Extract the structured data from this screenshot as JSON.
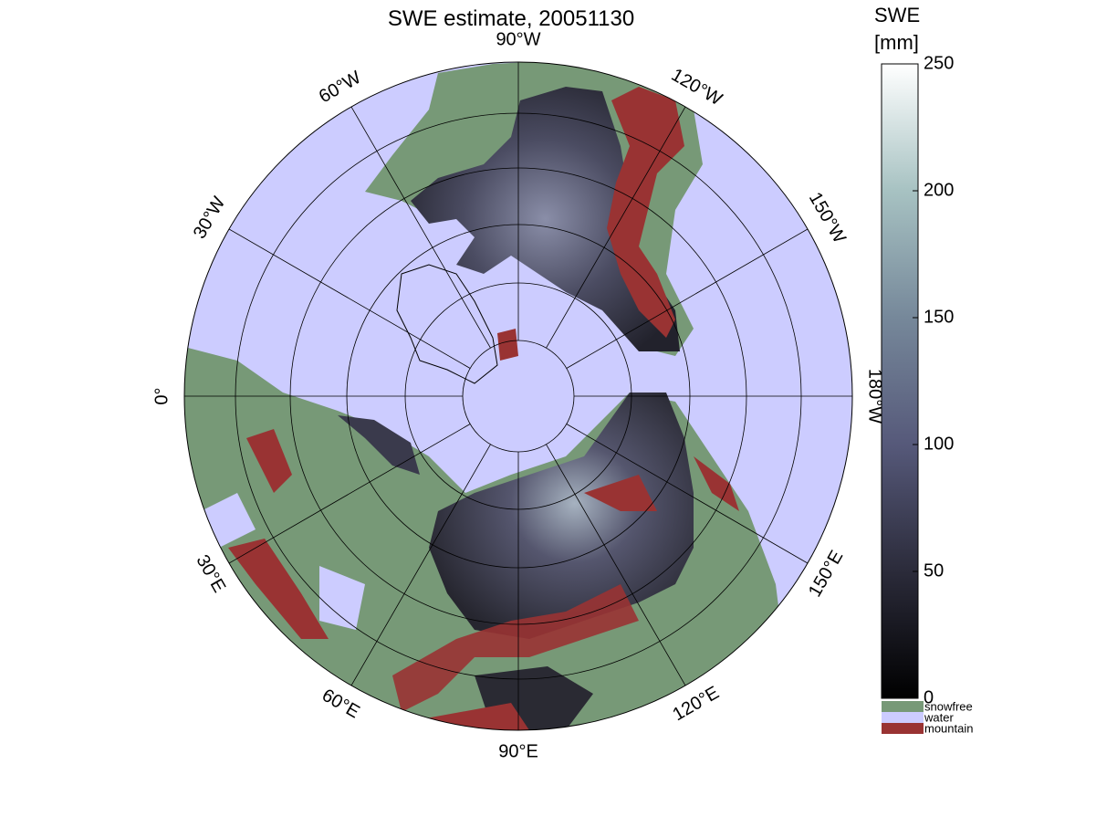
{
  "title": "SWE estimate, 20051130",
  "longitude_labels": [
    "90°W",
    "120°W",
    "150°W",
    "180°W",
    "150°E",
    "120°E",
    "90°E",
    "60°E",
    "30°E",
    "0°",
    "30°W",
    "60°W"
  ],
  "colorbar": {
    "title": [
      "SWE",
      "[mm]"
    ],
    "lim": [
      0,
      250
    ],
    "ticks": [
      0,
      50,
      100,
      150,
      200,
      250
    ]
  },
  "legend": [
    {
      "label": "snowfree",
      "color": "#779977"
    },
    {
      "label": "water",
      "color": "#ccccff"
    },
    {
      "label": "mountain",
      "color": "#993333"
    }
  ]
}
